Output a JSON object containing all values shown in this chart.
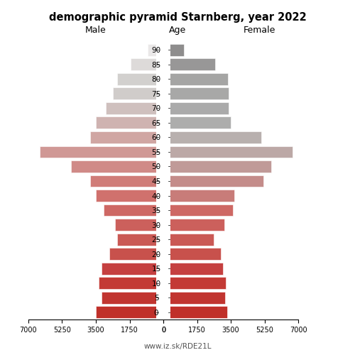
{
  "title": "demographic pyramid Starnberg, year 2022",
  "subtitle_left": "Male",
  "subtitle_center": "Age",
  "subtitle_right": "Female",
  "watermark": "www.iz.sk/RDE21L",
  "age_groups": [
    0,
    5,
    10,
    15,
    20,
    25,
    30,
    35,
    40,
    45,
    50,
    55,
    60,
    65,
    70,
    75,
    80,
    85,
    90
  ],
  "male": [
    3500,
    3200,
    3350,
    3200,
    2800,
    2400,
    2500,
    3100,
    3500,
    3800,
    4800,
    6400,
    3800,
    3500,
    3000,
    2600,
    2400,
    1700,
    800
  ],
  "female": [
    3300,
    3200,
    3250,
    3100,
    3000,
    2600,
    3150,
    3600,
    3700,
    5200,
    5600,
    6700,
    5100,
    3500,
    3400,
    3400,
    3350,
    2700,
    1050
  ],
  "xlim": 7000,
  "xticks_male": [
    7000,
    5250,
    3500,
    1750,
    0
  ],
  "xticks_female": [
    0,
    1750,
    3500,
    5250,
    7000
  ],
  "xtick_labels": [
    "7000",
    "5250",
    "3500",
    "1750",
    "0"
  ],
  "background_color": "#ffffff",
  "bar_height": 0.82,
  "male_colors": [
    "#c0302a",
    "#c13530",
    "#c33a35",
    "#c54040",
    "#c8514c",
    "#ca5955",
    "#cc605c",
    "#ce6864",
    "#d0716d",
    "#d07c78",
    "#d08a87",
    "#d09895",
    "#d0a6a3",
    "#cfb3b1",
    "#cfc0be",
    "#d0ccca",
    "#d2d0ce",
    "#dddad9",
    "#eae8e8"
  ],
  "female_colors": [
    "#c0302a",
    "#c13530",
    "#c33a35",
    "#c54040",
    "#c8514c",
    "#ca5955",
    "#cc605c",
    "#ce6864",
    "#c87c79",
    "#c48c8a",
    "#c09a98",
    "#bca8a6",
    "#b8b0ae",
    "#adadac",
    "#aaaaaa",
    "#a8a8a7",
    "#a5a5a4",
    "#989797",
    "#8e8d8d"
  ]
}
